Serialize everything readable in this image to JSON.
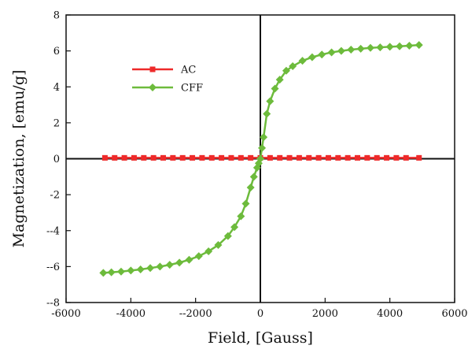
{
  "chart_data": {
    "type": "scatter",
    "xlabel": "Field, [Gauss]",
    "ylabel": "Magnetization, [emu/g]",
    "xlim": [
      -6000,
      6000
    ],
    "ylim": [
      -8,
      8
    ],
    "x_ticks": [
      -6000,
      -4000,
      -2000,
      0,
      2000,
      4000,
      6000
    ],
    "x_tick_labels": [
      "-6000",
      "-4000",
      "--2000",
      "0",
      "2000",
      "4000",
      "6000"
    ],
    "y_ticks": [
      8,
      6,
      4,
      2,
      0,
      -2,
      -4,
      -6,
      -8
    ],
    "y_tick_labels": [
      "8",
      "6",
      "4",
      "2",
      "0",
      "-2",
      "--4",
      "--6",
      "--8"
    ],
    "grid": false,
    "legend_position": "upper-left",
    "series": [
      {
        "name": "AC",
        "color": "#ee2a2a",
        "marker": "square",
        "x": [
          -4800,
          -4500,
          -4200,
          -3900,
          -3600,
          -3300,
          -3000,
          -2700,
          -2400,
          -2100,
          -1800,
          -1500,
          -1200,
          -900,
          -600,
          -300,
          0,
          300,
          600,
          900,
          1200,
          1500,
          1800,
          2100,
          2400,
          2700,
          3000,
          3300,
          3600,
          3900,
          4200,
          4500,
          4900
        ],
        "y": [
          0.05,
          0.05,
          0.05,
          0.05,
          0.05,
          0.05,
          0.05,
          0.05,
          0.05,
          0.05,
          0.05,
          0.05,
          0.05,
          0.05,
          0.05,
          0.05,
          0.05,
          0.05,
          0.05,
          0.05,
          0.05,
          0.05,
          0.05,
          0.05,
          0.05,
          0.05,
          0.05,
          0.05,
          0.05,
          0.05,
          0.05,
          0.05,
          0.05
        ]
      },
      {
        "name": "CFF",
        "color": "#6dbb3c",
        "marker": "diamond",
        "x": [
          -4850,
          -4600,
          -4300,
          -4000,
          -3700,
          -3400,
          -3100,
          -2800,
          -2500,
          -2200,
          -1900,
          -1600,
          -1300,
          -1000,
          -800,
          -600,
          -450,
          -300,
          -200,
          -100,
          -50,
          0,
          50,
          100,
          200,
          300,
          450,
          600,
          800,
          1000,
          1300,
          1600,
          1900,
          2200,
          2500,
          2800,
          3100,
          3400,
          3700,
          4000,
          4300,
          4600,
          4900
        ],
        "y": [
          -6.35,
          -6.32,
          -6.28,
          -6.22,
          -6.16,
          -6.08,
          -6.0,
          -5.9,
          -5.78,
          -5.62,
          -5.42,
          -5.15,
          -4.8,
          -4.3,
          -3.8,
          -3.2,
          -2.5,
          -1.6,
          -1.0,
          -0.5,
          -0.25,
          0.0,
          0.6,
          1.2,
          2.5,
          3.2,
          3.9,
          4.4,
          4.9,
          5.15,
          5.45,
          5.65,
          5.8,
          5.92,
          6.0,
          6.07,
          6.12,
          6.17,
          6.2,
          6.23,
          6.26,
          6.29,
          6.33
        ]
      }
    ]
  }
}
